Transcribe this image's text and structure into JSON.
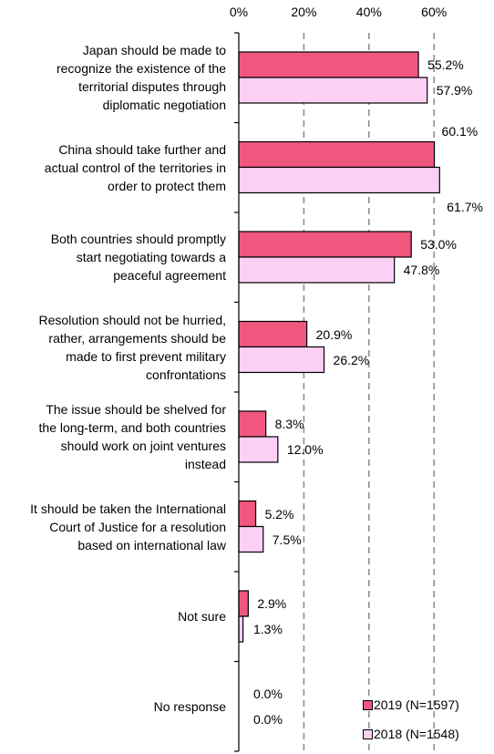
{
  "chart_data": {
    "type": "bar",
    "orientation": "horizontal",
    "categories": [
      "Japan should be made to recognize the existence of the territorial disputes through diplomatic negotiation",
      "China should take further and actual control of the territories in order to protect them",
      "Both countries should promptly start negotiating towards a peaceful agreement",
      "Resolution should not be hurried, rather, arrangements should be made to first prevent military confrontations",
      "The issue should be shelved for the long-term, and both countries should work on joint ventures instead",
      "It should be taken the International Court of Justice for a resolution based on international law",
      "Not sure",
      "No response"
    ],
    "series": [
      {
        "name": "2019 (N=1597)",
        "color": "#f0577f",
        "values": [
          55.2,
          60.1,
          53.0,
          20.9,
          8.3,
          5.2,
          2.9,
          0.0
        ],
        "labels": [
          "55.2%",
          "60.1%",
          "53.0%",
          "20.9%",
          "8.3%",
          "5.2%",
          "2.9%",
          "0.0%"
        ]
      },
      {
        "name": "2018 (N=1548)",
        "color": "#fcd0f4",
        "values": [
          57.9,
          61.7,
          47.8,
          26.2,
          12.0,
          7.5,
          1.3,
          0.0
        ],
        "labels": [
          "57.9%",
          "61.7%",
          "47.8%",
          "26.2%",
          "12.0%",
          "7.5%",
          "1.3%",
          "0.0%"
        ]
      }
    ],
    "xlim": [
      0,
      70
    ],
    "xticks": [
      0,
      20,
      40,
      60
    ],
    "xtick_labels": [
      "0%",
      "20%",
      "40%",
      "60%"
    ],
    "xaxis_position": "top",
    "grid": "vertical dashed",
    "legend_position": "bottom-right",
    "title": "",
    "xlabel": "",
    "ylabel": ""
  },
  "category_lines": [
    [
      "Japan should be made to",
      "recognize the existence of the",
      "territorial disputes through",
      "diplomatic negotiation"
    ],
    [
      "China should take further and",
      "actual control of the territories in",
      "order to protect them"
    ],
    [
      "Both countries should promptly",
      "start negotiating towards a",
      "peaceful agreement"
    ],
    [
      "Resolution should not be hurried,",
      "rather, arrangements should be",
      "made to first prevent military",
      "confrontations"
    ],
    [
      "The issue should be shelved for",
      "the long-term, and both countries",
      "should work on joint ventures",
      "instead"
    ],
    [
      "It should be taken the International",
      "Court of Justice for a resolution",
      "based on international law"
    ],
    [
      "Not sure"
    ],
    [
      "No response"
    ]
  ]
}
